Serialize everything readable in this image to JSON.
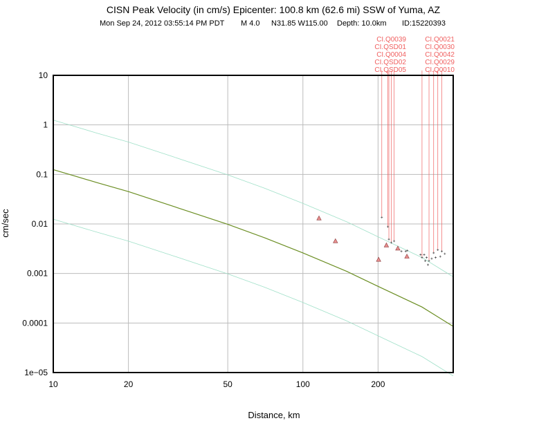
{
  "chart_data": {
    "type": "scatter",
    "title": "CISN Peak Velocity (in cm/s) Epicenter: 100.8 km (62.6 mi) SSW of Yuma, AZ",
    "subtitle": {
      "datetime": "Mon Sep 24, 2012 03:55:14 PM PDT",
      "magnitude": "M 4.0",
      "location": "N31.85 W115.00",
      "depth": "Depth: 10.0km",
      "event_id": "ID:15220393"
    },
    "xlabel": "Distance, km",
    "ylabel": "cm/sec",
    "x_scale": "log",
    "y_scale": "log",
    "xlim": [
      10,
      400
    ],
    "ylim": [
      1e-05,
      10
    ],
    "grid": true,
    "x_ticks": [
      {
        "value": 10,
        "label": "10"
      },
      {
        "value": 20,
        "label": "20"
      },
      {
        "value": 50,
        "label": "50"
      },
      {
        "value": 100,
        "label": "100"
      },
      {
        "value": 200,
        "label": "200"
      }
    ],
    "y_ticks": [
      {
        "value": 10,
        "label": "10"
      },
      {
        "value": 1,
        "label": "1"
      },
      {
        "value": 0.1,
        "label": "0.1"
      },
      {
        "value": 0.01,
        "label": "0.01"
      },
      {
        "value": 0.001,
        "label": "0.001"
      },
      {
        "value": 0.0001,
        "label": "0.0001"
      },
      {
        "value": 1e-05,
        "label": "1e−05"
      }
    ],
    "curves": [
      {
        "role": "median",
        "color": "#6b8e23",
        "x": [
          10,
          15,
          20,
          30,
          50,
          70,
          100,
          150,
          200,
          300,
          400
        ],
        "y": [
          0.125,
          0.068,
          0.045,
          0.023,
          0.0098,
          0.0053,
          0.0026,
          0.0011,
          0.00055,
          0.00021,
          8.55e-05
        ]
      },
      {
        "role": "upper",
        "color": "#9fe0c8",
        "x": [
          10,
          15,
          20,
          30,
          50,
          70,
          100,
          150,
          200,
          300,
          400
        ],
        "y": [
          1.25,
          0.68,
          0.45,
          0.23,
          0.098,
          0.053,
          0.026,
          0.011,
          0.0055,
          0.0021,
          0.000855
        ]
      },
      {
        "role": "lower",
        "color": "#9fe0c8",
        "x": [
          10,
          15,
          20,
          30,
          50,
          70,
          100,
          150,
          200,
          300,
          400
        ],
        "y": [
          0.0125,
          0.0068,
          0.0045,
          0.0023,
          0.00098,
          0.00053,
          0.00026,
          0.00011,
          5.5e-05,
          2.1e-05,
          8.55e-06
        ]
      }
    ],
    "series": [
      {
        "marker": "triangle",
        "color": "#e89090",
        "x": [
          116,
          135,
          201,
          216,
          240,
          261
        ],
        "y": [
          0.013,
          0.0045,
          0.0019,
          0.0037,
          0.0032,
          0.0022
        ]
      },
      {
        "marker": "plus",
        "color": "#555555",
        "x": [
          207,
          219,
          221,
          226,
          232,
          248,
          258,
          262,
          296,
          300,
          306,
          309,
          313,
          317,
          320,
          328,
          334,
          340,
          347,
          355,
          360,
          370
        ],
        "y": [
          0.0135,
          0.0088,
          0.0049,
          0.0042,
          0.0045,
          0.0028,
          0.0028,
          0.0029,
          0.0024,
          0.0021,
          0.0024,
          0.0018,
          0.0021,
          0.0015,
          0.0018,
          0.002,
          0.0026,
          0.0021,
          0.003,
          0.0022,
          0.0028,
          0.0025
        ]
      }
    ],
    "station_labels": {
      "color": "#f06060",
      "left_column": [
        "CI.Q0039",
        "CI.QSD01",
        "CI.Q0004",
        "CI.QSD02",
        "CI.QSD05"
      ],
      "right_column": [
        "CI.Q0021",
        "CI.Q0030",
        "CI.Q0042",
        "CI.Q0029",
        "CI.Q0010"
      ],
      "leader_x": [
        207,
        219,
        221,
        226,
        232,
        300,
        320,
        334,
        347,
        360
      ]
    }
  }
}
